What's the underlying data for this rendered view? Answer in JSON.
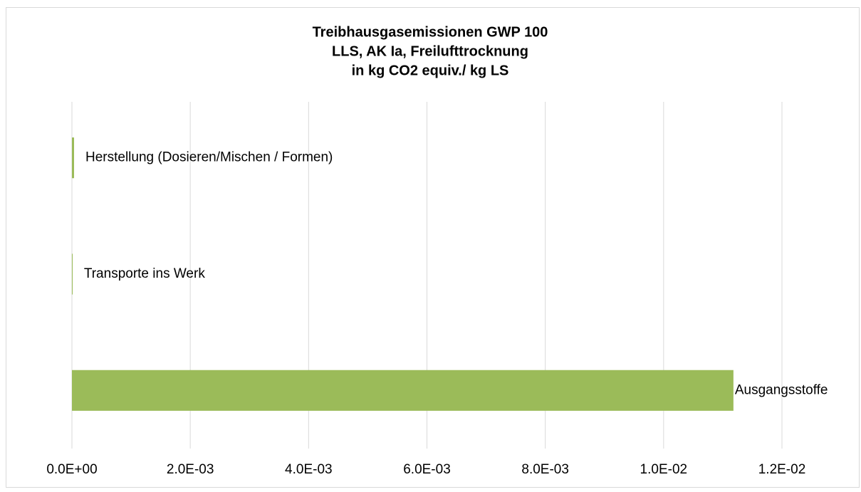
{
  "chart_data": {
    "type": "barh",
    "title": [
      "Treibhausgasemissionen GWP 100",
      "LLS, AK Ia, Freilufttrocknung",
      "in kg CO2 equiv./ kg LS"
    ],
    "categories": [
      "Herstellung (Dosieren/Mischen / Formen)",
      "Transporte ins Werk",
      "Ausgangsstoffe"
    ],
    "values": [
      3.6e-05,
      1e-05,
      0.01118
    ],
    "color": "#9bbb59",
    "xlim": [
      0,
      0.012
    ],
    "xticks": [
      {
        "value": 0,
        "label": "0.0E+00"
      },
      {
        "value": 0.002,
        "label": "2.0E-03"
      },
      {
        "value": 0.004,
        "label": "4.0E-03"
      },
      {
        "value": 0.006,
        "label": "6.0E-03"
      },
      {
        "value": 0.008,
        "label": "8.0E-03"
      },
      {
        "value": 0.01,
        "label": "1.0E-02"
      },
      {
        "value": 0.012,
        "label": "1.2E-02"
      }
    ],
    "grid": true
  }
}
